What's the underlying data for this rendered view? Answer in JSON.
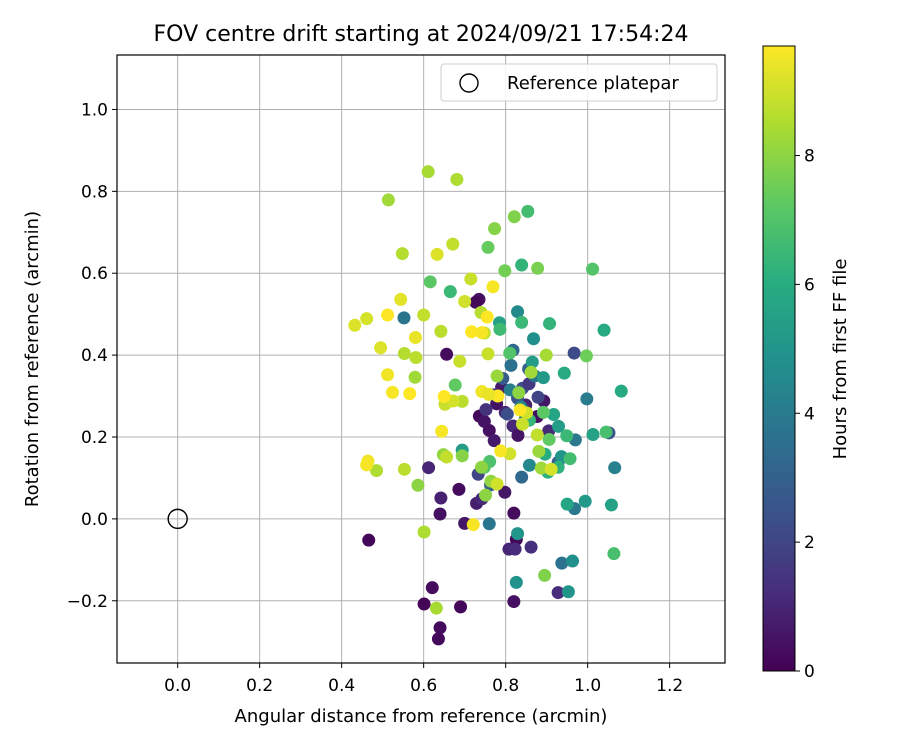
{
  "chart_data": {
    "type": "scatter",
    "title": "FOV centre drift starting at 2024/09/21 17:54:24",
    "xlabel": "Angular distance from reference (arcmin)",
    "ylabel": "Rotation from reference (arcmin)",
    "xlim": [
      -0.148,
      1.335
    ],
    "ylim": [
      -0.352,
      1.133
    ],
    "x_ticks": [
      "0.0",
      "0.2",
      "0.4",
      "0.6",
      "0.8",
      "1.0",
      "1.2"
    ],
    "y_ticks": [
      "−0.2",
      "0.0",
      "0.2",
      "0.4",
      "0.6",
      "0.8",
      "1.0"
    ],
    "grid": true,
    "legend": {
      "placement": "top-right",
      "entries": [
        "Reference platepar"
      ]
    },
    "reference_point": {
      "x": 0.0,
      "y": 0.0
    },
    "colorbar": {
      "label": "Hours from first FF file",
      "min": 0,
      "max": 9.7,
      "ticks": [
        "0",
        "2",
        "4",
        "6",
        "8"
      ],
      "colormap": "viridis"
    },
    "points": [
      {
        "x": 0.466,
        "y": -0.052,
        "h": 0.2
      },
      {
        "x": 0.601,
        "y": -0.208,
        "h": 0.1
      },
      {
        "x": 0.621,
        "y": -0.168,
        "h": 0.3
      },
      {
        "x": 0.636,
        "y": -0.293,
        "h": 0.2
      },
      {
        "x": 0.64,
        "y": -0.266,
        "h": 0.3
      },
      {
        "x": 0.69,
        "y": -0.215,
        "h": 0.2
      },
      {
        "x": 0.7,
        "y": -0.011,
        "h": 0.6
      },
      {
        "x": 0.64,
        "y": 0.012,
        "h": 0.4
      },
      {
        "x": 0.686,
        "y": 0.072,
        "h": 0.3
      },
      {
        "x": 0.642,
        "y": 0.051,
        "h": 0.9
      },
      {
        "x": 0.656,
        "y": 0.402,
        "h": 0.3
      },
      {
        "x": 0.736,
        "y": 0.251,
        "h": 0.2
      },
      {
        "x": 0.748,
        "y": 0.238,
        "h": 0.5
      },
      {
        "x": 0.76,
        "y": 0.216,
        "h": 0.4
      },
      {
        "x": 0.772,
        "y": 0.191,
        "h": 0.7
      },
      {
        "x": 0.735,
        "y": 0.536,
        "h": 0.4
      },
      {
        "x": 0.727,
        "y": 0.529,
        "h": 0.2
      },
      {
        "x": 0.778,
        "y": 0.281,
        "h": 0.5
      },
      {
        "x": 0.799,
        "y": 0.26,
        "h": 0.9
      },
      {
        "x": 0.818,
        "y": 0.227,
        "h": 1.1
      },
      {
        "x": 0.83,
        "y": 0.204,
        "h": 0.5
      },
      {
        "x": 0.82,
        "y": 0.014,
        "h": 0.3
      },
      {
        "x": 0.808,
        "y": -0.074,
        "h": 1.0
      },
      {
        "x": 0.826,
        "y": -0.05,
        "h": 0.2
      },
      {
        "x": 0.823,
        "y": -0.074,
        "h": 1.2
      },
      {
        "x": 0.82,
        "y": -0.202,
        "h": 0.4
      },
      {
        "x": 0.862,
        "y": -0.069,
        "h": 1.3
      },
      {
        "x": 0.798,
        "y": 0.065,
        "h": 0.6
      },
      {
        "x": 0.729,
        "y": 0.038,
        "h": 0.8
      },
      {
        "x": 0.742,
        "y": 0.049,
        "h": 1.1
      },
      {
        "x": 0.752,
        "y": 0.267,
        "h": 1.4
      },
      {
        "x": 0.778,
        "y": 0.301,
        "h": 1.0
      },
      {
        "x": 0.79,
        "y": 0.321,
        "h": 0.7
      },
      {
        "x": 0.849,
        "y": 0.278,
        "h": 0.9
      },
      {
        "x": 0.877,
        "y": 0.25,
        "h": 0.4
      },
      {
        "x": 0.893,
        "y": 0.288,
        "h": 0.6
      },
      {
        "x": 0.905,
        "y": 0.215,
        "h": 1.1
      },
      {
        "x": 0.928,
        "y": -0.18,
        "h": 1.2
      },
      {
        "x": 0.612,
        "y": 0.125,
        "h": 1.0
      },
      {
        "x": 0.77,
        "y": 0.303,
        "h": 1.6
      },
      {
        "x": 0.841,
        "y": 0.319,
        "h": 2.3
      },
      {
        "x": 0.857,
        "y": 0.33,
        "h": 1.6
      },
      {
        "x": 0.879,
        "y": 0.297,
        "h": 2.0
      },
      {
        "x": 0.967,
        "y": 0.405,
        "h": 2.2
      },
      {
        "x": 0.829,
        "y": 0.295,
        "h": 2.5
      },
      {
        "x": 0.793,
        "y": 0.343,
        "h": 2.8
      },
      {
        "x": 0.733,
        "y": 0.109,
        "h": 2.0
      },
      {
        "x": 0.763,
        "y": 0.083,
        "h": 2.9
      },
      {
        "x": 0.804,
        "y": 0.256,
        "h": 2.3
      },
      {
        "x": 0.928,
        "y": 0.138,
        "h": 2.7
      },
      {
        "x": 1.052,
        "y": 0.21,
        "h": 2.5
      },
      {
        "x": 0.856,
        "y": 0.366,
        "h": 3.0
      },
      {
        "x": 0.818,
        "y": 0.412,
        "h": 3.3
      },
      {
        "x": 0.839,
        "y": 0.102,
        "h": 3.3
      },
      {
        "x": 0.813,
        "y": 0.375,
        "h": 3.6
      },
      {
        "x": 0.871,
        "y": 0.349,
        "h": 3.7
      },
      {
        "x": 0.552,
        "y": 0.491,
        "h": 3.7
      },
      {
        "x": 0.76,
        "y": -0.012,
        "h": 3.7
      },
      {
        "x": 0.937,
        "y": -0.108,
        "h": 3.6
      },
      {
        "x": 0.968,
        "y": 0.025,
        "h": 3.9
      },
      {
        "x": 0.97,
        "y": 0.193,
        "h": 3.9
      },
      {
        "x": 0.998,
        "y": 0.293,
        "h": 4.0
      },
      {
        "x": 1.066,
        "y": 0.125,
        "h": 4.2
      },
      {
        "x": 0.811,
        "y": 0.315,
        "h": 4.1
      },
      {
        "x": 0.837,
        "y": 0.273,
        "h": 4.4
      },
      {
        "x": 0.848,
        "y": 0.244,
        "h": 4.0
      },
      {
        "x": 0.858,
        "y": 0.131,
        "h": 4.5
      },
      {
        "x": 0.829,
        "y": 0.506,
        "h": 4.6
      },
      {
        "x": 0.868,
        "y": 0.44,
        "h": 4.8
      },
      {
        "x": 0.826,
        "y": -0.155,
        "h": 4.9
      },
      {
        "x": 0.829,
        "y": -0.036,
        "h": 5.0
      },
      {
        "x": 0.936,
        "y": 0.152,
        "h": 5.0
      },
      {
        "x": 0.963,
        "y": -0.103,
        "h": 4.8
      },
      {
        "x": 0.953,
        "y": -0.178,
        "h": 5.0
      },
      {
        "x": 0.694,
        "y": 0.168,
        "h": 5.3
      },
      {
        "x": 0.785,
        "y": 0.479,
        "h": 5.5
      },
      {
        "x": 0.865,
        "y": 0.383,
        "h": 5.3
      },
      {
        "x": 0.892,
        "y": 0.345,
        "h": 5.2
      },
      {
        "x": 0.917,
        "y": 0.255,
        "h": 5.6
      },
      {
        "x": 0.929,
        "y": 0.226,
        "h": 5.3
      },
      {
        "x": 0.95,
        "y": 0.036,
        "h": 5.7
      },
      {
        "x": 0.994,
        "y": 0.043,
        "h": 5.2
      },
      {
        "x": 1.013,
        "y": 0.206,
        "h": 5.5
      },
      {
        "x": 1.058,
        "y": 0.034,
        "h": 5.5
      },
      {
        "x": 1.04,
        "y": 0.461,
        "h": 5.9
      },
      {
        "x": 1.082,
        "y": 0.312,
        "h": 5.9
      },
      {
        "x": 0.943,
        "y": 0.356,
        "h": 5.9
      },
      {
        "x": 0.896,
        "y": 0.158,
        "h": 6.0
      },
      {
        "x": 0.907,
        "y": 0.477,
        "h": 6.3
      },
      {
        "x": 0.839,
        "y": 0.62,
        "h": 6.3
      },
      {
        "x": 0.858,
        "y": 0.241,
        "h": 6.4
      },
      {
        "x": 0.903,
        "y": 0.114,
        "h": 6.1
      },
      {
        "x": 0.928,
        "y": 0.126,
        "h": 6.2
      },
      {
        "x": 0.665,
        "y": 0.555,
        "h": 6.5
      },
      {
        "x": 0.786,
        "y": 0.463,
        "h": 6.6
      },
      {
        "x": 0.839,
        "y": 0.48,
        "h": 6.5
      },
      {
        "x": 0.854,
        "y": 0.751,
        "h": 6.7
      },
      {
        "x": 0.949,
        "y": 0.203,
        "h": 6.5
      },
      {
        "x": 0.957,
        "y": 0.147,
        "h": 6.7
      },
      {
        "x": 1.064,
        "y": -0.085,
        "h": 6.8
      },
      {
        "x": 1.012,
        "y": 0.61,
        "h": 7.0
      },
      {
        "x": 1.045,
        "y": 0.212,
        "h": 6.8
      },
      {
        "x": 0.761,
        "y": 0.14,
        "h": 6.9
      },
      {
        "x": 0.81,
        "y": 0.405,
        "h": 7.0
      },
      {
        "x": 0.748,
        "y": 0.126,
        "h": 7.1
      },
      {
        "x": 0.616,
        "y": 0.579,
        "h": 7.2
      },
      {
        "x": 0.677,
        "y": 0.327,
        "h": 7.3
      },
      {
        "x": 0.757,
        "y": 0.663,
        "h": 7.4
      },
      {
        "x": 0.892,
        "y": 0.26,
        "h": 7.2
      },
      {
        "x": 0.906,
        "y": 0.194,
        "h": 7.3
      },
      {
        "x": 0.997,
        "y": 0.398,
        "h": 7.5
      },
      {
        "x": 0.798,
        "y": 0.606,
        "h": 7.6
      },
      {
        "x": 0.878,
        "y": 0.612,
        "h": 7.7
      },
      {
        "x": 0.895,
        "y": -0.138,
        "h": 7.8
      },
      {
        "x": 0.773,
        "y": 0.709,
        "h": 7.9
      },
      {
        "x": 0.821,
        "y": 0.738,
        "h": 7.8
      },
      {
        "x": 0.586,
        "y": 0.082,
        "h": 8.0
      },
      {
        "x": 0.648,
        "y": 0.157,
        "h": 8.1
      },
      {
        "x": 0.694,
        "y": 0.154,
        "h": 7.9
      },
      {
        "x": 0.741,
        "y": 0.126,
        "h": 8.0
      },
      {
        "x": 0.764,
        "y": 0.092,
        "h": 8.1
      },
      {
        "x": 0.751,
        "y": 0.058,
        "h": 8.0
      },
      {
        "x": 0.779,
        "y": 0.349,
        "h": 8.2
      },
      {
        "x": 0.832,
        "y": 0.308,
        "h": 8.0
      },
      {
        "x": 0.862,
        "y": 0.358,
        "h": 8.3
      },
      {
        "x": 0.881,
        "y": 0.165,
        "h": 8.2
      },
      {
        "x": 0.887,
        "y": 0.124,
        "h": 8.3
      },
      {
        "x": 0.899,
        "y": 0.4,
        "h": 8.4
      },
      {
        "x": 0.601,
        "y": -0.032,
        "h": 8.5
      },
      {
        "x": 0.631,
        "y": -0.218,
        "h": 8.4
      },
      {
        "x": 0.553,
        "y": 0.404,
        "h": 8.6
      },
      {
        "x": 0.579,
        "y": 0.346,
        "h": 8.3
      },
      {
        "x": 0.553,
        "y": 0.121,
        "h": 8.7
      },
      {
        "x": 0.485,
        "y": 0.118,
        "h": 8.5
      },
      {
        "x": 0.514,
        "y": 0.779,
        "h": 8.3
      },
      {
        "x": 0.611,
        "y": 0.848,
        "h": 8.4
      },
      {
        "x": 0.681,
        "y": 0.829,
        "h": 8.5
      },
      {
        "x": 0.548,
        "y": 0.648,
        "h": 8.6
      },
      {
        "x": 0.581,
        "y": 0.394,
        "h": 8.7
      },
      {
        "x": 0.6,
        "y": 0.498,
        "h": 8.8
      },
      {
        "x": 0.642,
        "y": 0.458,
        "h": 8.7
      },
      {
        "x": 0.671,
        "y": 0.671,
        "h": 8.8
      },
      {
        "x": 0.715,
        "y": 0.586,
        "h": 8.9
      },
      {
        "x": 0.74,
        "y": 0.504,
        "h": 8.6
      },
      {
        "x": 0.748,
        "y": 0.454,
        "h": 8.8
      },
      {
        "x": 0.757,
        "y": 0.403,
        "h": 8.9
      },
      {
        "x": 0.694,
        "y": 0.287,
        "h": 8.7
      },
      {
        "x": 0.652,
        "y": 0.28,
        "h": 8.9
      },
      {
        "x": 0.656,
        "y": 0.151,
        "h": 8.8
      },
      {
        "x": 0.779,
        "y": 0.085,
        "h": 9.0
      },
      {
        "x": 0.81,
        "y": 0.159,
        "h": 9.0
      },
      {
        "x": 0.841,
        "y": 0.231,
        "h": 8.9
      },
      {
        "x": 0.851,
        "y": 0.259,
        "h": 9.0
      },
      {
        "x": 0.877,
        "y": 0.205,
        "h": 8.8
      },
      {
        "x": 0.911,
        "y": 0.121,
        "h": 9.1
      },
      {
        "x": 0.633,
        "y": 0.646,
        "h": 9.2
      },
      {
        "x": 0.7,
        "y": 0.531,
        "h": 9.0
      },
      {
        "x": 0.688,
        "y": 0.385,
        "h": 8.9
      },
      {
        "x": 0.672,
        "y": 0.288,
        "h": 9.1
      },
      {
        "x": 0.461,
        "y": 0.489,
        "h": 9.1
      },
      {
        "x": 0.432,
        "y": 0.473,
        "h": 9.2
      },
      {
        "x": 0.544,
        "y": 0.536,
        "h": 9.3
      },
      {
        "x": 0.58,
        "y": 0.443,
        "h": 9.4
      },
      {
        "x": 0.495,
        "y": 0.418,
        "h": 9.2
      },
      {
        "x": 0.512,
        "y": 0.352,
        "h": 9.5
      },
      {
        "x": 0.524,
        "y": 0.309,
        "h": 9.6
      },
      {
        "x": 0.464,
        "y": 0.141,
        "h": 9.5
      },
      {
        "x": 0.461,
        "y": 0.132,
        "h": 9.6
      },
      {
        "x": 0.512,
        "y": 0.498,
        "h": 9.7
      },
      {
        "x": 0.566,
        "y": 0.306,
        "h": 9.7
      },
      {
        "x": 0.644,
        "y": 0.214,
        "h": 9.6
      },
      {
        "x": 0.717,
        "y": 0.457,
        "h": 9.7
      },
      {
        "x": 0.742,
        "y": 0.455,
        "h": 9.6
      },
      {
        "x": 0.755,
        "y": 0.493,
        "h": 9.7
      },
      {
        "x": 0.769,
        "y": 0.567,
        "h": 9.6
      },
      {
        "x": 0.781,
        "y": 0.3,
        "h": 9.7
      },
      {
        "x": 0.788,
        "y": 0.166,
        "h": 9.6
      },
      {
        "x": 0.835,
        "y": 0.266,
        "h": 9.7
      },
      {
        "x": 0.721,
        "y": -0.014,
        "h": 9.6
      },
      {
        "x": 0.742,
        "y": 0.311,
        "h": 9.5
      },
      {
        "x": 0.65,
        "y": 0.299,
        "h": 9.7
      },
      {
        "x": 0.759,
        "y": 0.304,
        "h": 9.4
      }
    ]
  }
}
